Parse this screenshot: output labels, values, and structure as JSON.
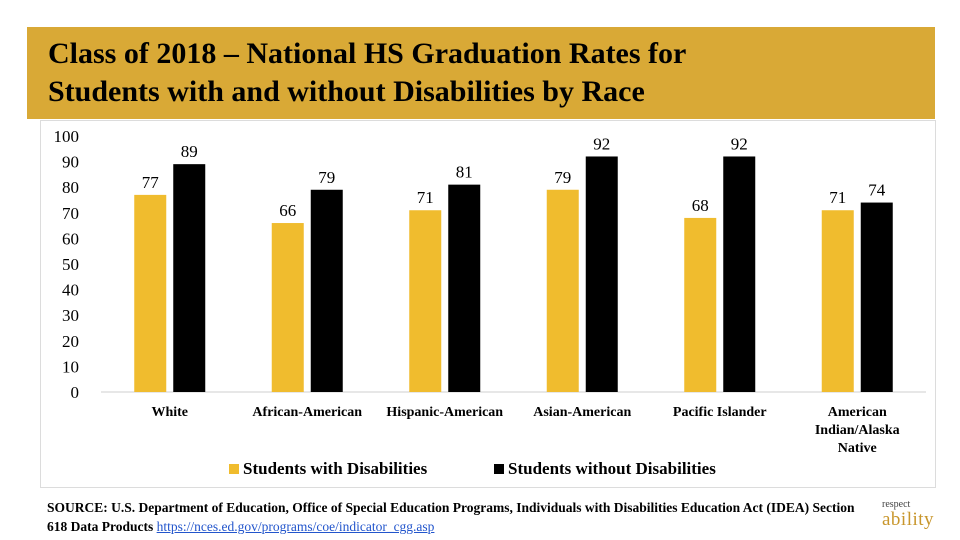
{
  "title_lines": [
    "Class of 2018 – National HS Graduation Rates for",
    "Students with and without Disabilities by Race"
  ],
  "chart_data": {
    "type": "bar",
    "title": "Class of 2018 – National HS Graduation Rates for Students with and without Disabilities by Race",
    "categories": [
      [
        "White"
      ],
      [
        "African-American"
      ],
      [
        "Hispanic-American"
      ],
      [
        "Asian-American"
      ],
      [
        "Pacific Islander"
      ],
      [
        "American",
        "Indian/Alaska",
        "Native"
      ]
    ],
    "series": [
      {
        "name": "Students with Disabilities",
        "color": "#f0bc2e",
        "values": [
          77,
          66,
          71,
          79,
          68,
          71
        ]
      },
      {
        "name": "Students without Disabilities",
        "color": "#000000",
        "values": [
          89,
          79,
          81,
          92,
          92,
          74
        ]
      }
    ],
    "yticks": [
      0,
      10,
      20,
      30,
      40,
      50,
      60,
      70,
      80,
      90,
      100
    ],
    "ylim": [
      0,
      100
    ],
    "xlabel": "",
    "ylabel": "",
    "grid": false,
    "legend_position": "bottom"
  },
  "source": {
    "text": "SOURCE: U.S. Department of Education, Office of Special Education Programs, Individuals with Disabilities Education Act (IDEA) Section 618 Data Products",
    "link": "https://nces.ed.gov/programs/coe/indicator_cgg.asp"
  },
  "logo": {
    "top": "respect",
    "bottom": "ability"
  }
}
